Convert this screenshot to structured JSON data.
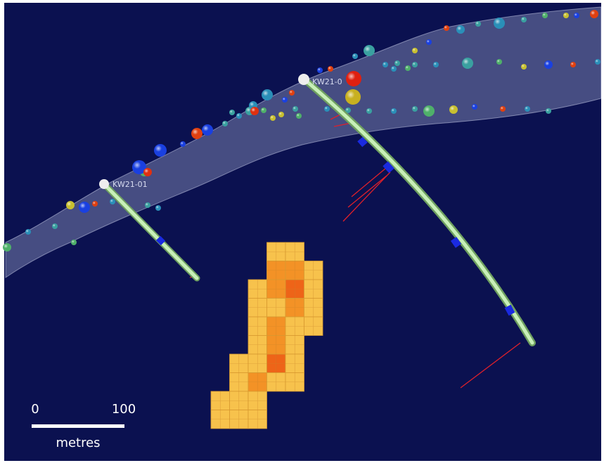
{
  "drillholes": [
    {
      "label": "KW21-01"
    },
    {
      "label": "KW21-0"
    }
  ],
  "scale_bar": {
    "start": "0",
    "end": "100",
    "unit": "metres"
  }
}
